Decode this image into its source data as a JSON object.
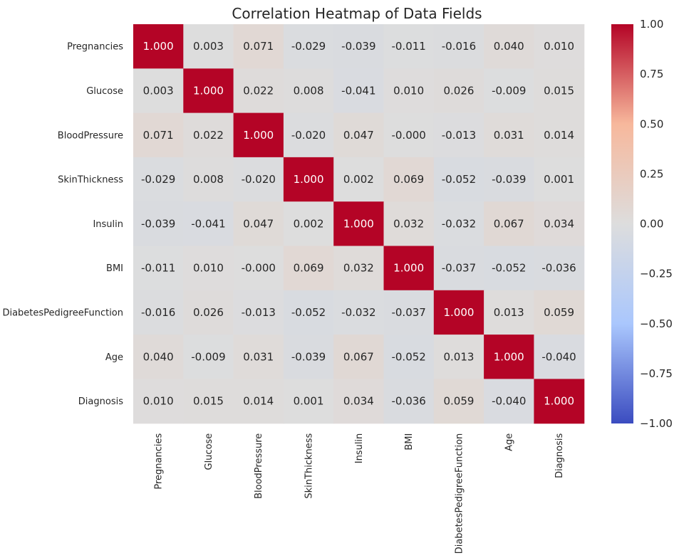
{
  "chart_data": {
    "type": "heatmap",
    "title": "Correlation Heatmap of Data Fields",
    "xlabel": "",
    "ylabel": "",
    "x_labels": [
      "Pregnancies",
      "Glucose",
      "BloodPressure",
      "SkinThickness",
      "Insulin",
      "BMI",
      "DiabetesPedigreeFunction",
      "Age",
      "Diagnosis"
    ],
    "y_labels": [
      "Pregnancies",
      "Glucose",
      "BloodPressure",
      "SkinThickness",
      "Insulin",
      "BMI",
      "DiabetesPedigreeFunction",
      "Age",
      "Diagnosis"
    ],
    "values": [
      [
        1.0,
        0.003,
        0.071,
        -0.029,
        -0.039,
        -0.011,
        -0.016,
        0.04,
        0.01
      ],
      [
        0.003,
        1.0,
        0.022,
        0.008,
        -0.041,
        0.01,
        0.026,
        -0.009,
        0.015
      ],
      [
        0.071,
        0.022,
        1.0,
        -0.02,
        0.047,
        -0.0,
        -0.013,
        0.031,
        0.014
      ],
      [
        -0.029,
        0.008,
        -0.02,
        1.0,
        0.002,
        0.069,
        -0.052,
        -0.039,
        0.001
      ],
      [
        -0.039,
        -0.041,
        0.047,
        0.002,
        1.0,
        0.032,
        -0.032,
        0.067,
        0.034
      ],
      [
        -0.011,
        0.01,
        -0.0,
        0.069,
        0.032,
        1.0,
        -0.037,
        -0.052,
        -0.036
      ],
      [
        -0.016,
        0.026,
        -0.013,
        -0.052,
        -0.032,
        -0.037,
        1.0,
        0.013,
        0.059
      ],
      [
        0.04,
        -0.009,
        0.031,
        -0.039,
        0.067,
        -0.052,
        0.013,
        1.0,
        -0.04
      ],
      [
        0.01,
        0.015,
        0.014,
        0.001,
        0.034,
        -0.036,
        0.059,
        -0.04,
        1.0
      ]
    ],
    "value_labels": [
      [
        "1.000",
        "0.003",
        "0.071",
        "-0.029",
        "-0.039",
        "-0.011",
        "-0.016",
        "0.040",
        "0.010"
      ],
      [
        "0.003",
        "1.000",
        "0.022",
        "0.008",
        "-0.041",
        "0.010",
        "0.026",
        "-0.009",
        "0.015"
      ],
      [
        "0.071",
        "0.022",
        "1.000",
        "-0.020",
        "0.047",
        "-0.000",
        "-0.013",
        "0.031",
        "0.014"
      ],
      [
        "-0.029",
        "0.008",
        "-0.020",
        "1.000",
        "0.002",
        "0.069",
        "-0.052",
        "-0.039",
        "0.001"
      ],
      [
        "-0.039",
        "-0.041",
        "0.047",
        "0.002",
        "1.000",
        "0.032",
        "-0.032",
        "0.067",
        "0.034"
      ],
      [
        "-0.011",
        "0.010",
        "-0.000",
        "0.069",
        "0.032",
        "1.000",
        "-0.037",
        "-0.052",
        "-0.036"
      ],
      [
        "-0.016",
        "0.026",
        "-0.013",
        "-0.052",
        "-0.032",
        "-0.037",
        "1.000",
        "0.013",
        "0.059"
      ],
      [
        "0.040",
        "-0.009",
        "0.031",
        "-0.039",
        "0.067",
        "-0.052",
        "0.013",
        "1.000",
        "-0.040"
      ],
      [
        "0.010",
        "0.015",
        "0.014",
        "0.001",
        "0.034",
        "-0.036",
        "0.059",
        "-0.040",
        "1.000"
      ]
    ],
    "colormap": "coolwarm",
    "colormap_colors": [
      "#3b4cc0",
      "#aac7fd",
      "#dddddd",
      "#f7b89c",
      "#b40426"
    ],
    "vmin": -1.0,
    "vmax": 1.0,
    "colorbar": {
      "ticks": [
        1.0,
        0.75,
        0.5,
        0.25,
        0.0,
        -0.25,
        -0.5,
        -0.75,
        -1.0
      ],
      "tick_labels": [
        "1.00",
        "0.75",
        "0.50",
        "0.25",
        "0.00",
        "−0.25",
        "−0.50",
        "−0.75",
        "−1.00"
      ],
      "position": "right"
    },
    "grid": false
  }
}
